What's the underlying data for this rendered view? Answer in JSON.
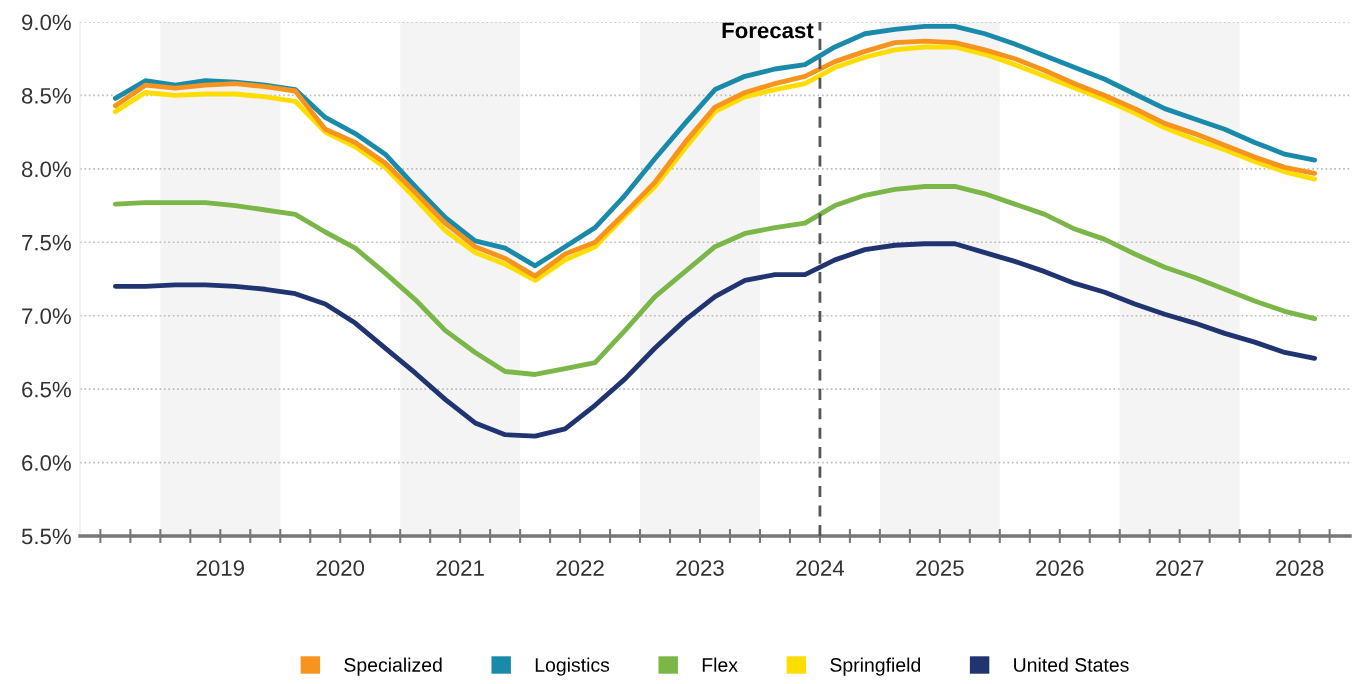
{
  "chart_data": {
    "type": "line",
    "x": [
      2018.625,
      2018.875,
      2019.125,
      2019.375,
      2019.625,
      2019.875,
      2020.125,
      2020.375,
      2020.625,
      2020.875,
      2021.125,
      2021.375,
      2021.625,
      2021.875,
      2022.125,
      2022.375,
      2022.625,
      2022.875,
      2023.125,
      2023.375,
      2023.625,
      2023.875,
      2024.125,
      2024.375,
      2024.625,
      2024.875,
      2025.125,
      2025.375,
      2025.625,
      2025.875,
      2026.125,
      2026.375,
      2026.625,
      2026.875,
      2027.125,
      2027.375,
      2027.625,
      2027.875,
      2028.125,
      2028.375,
      2028.625
    ],
    "series": [
      {
        "name": "Specialized",
        "color": "#f7941d",
        "values": [
          8.43,
          8.57,
          8.55,
          8.57,
          8.58,
          8.56,
          8.53,
          8.27,
          8.18,
          8.04,
          7.84,
          7.63,
          7.47,
          7.39,
          7.27,
          7.42,
          7.5,
          7.7,
          7.91,
          8.18,
          8.42,
          8.52,
          8.58,
          8.63,
          8.73,
          8.8,
          8.86,
          8.87,
          8.86,
          8.81,
          8.75,
          8.67,
          8.58,
          8.5,
          8.41,
          8.31,
          8.24,
          8.16,
          8.08,
          8.01,
          7.97
        ]
      },
      {
        "name": "Logistics",
        "color": "#1a8aab",
        "values": [
          8.48,
          8.6,
          8.57,
          8.6,
          8.59,
          8.57,
          8.54,
          8.35,
          8.24,
          8.1,
          7.88,
          7.67,
          7.51,
          7.46,
          7.34,
          7.47,
          7.6,
          7.82,
          8.07,
          8.31,
          8.54,
          8.63,
          8.68,
          8.71,
          8.83,
          8.92,
          8.95,
          8.97,
          8.97,
          8.92,
          8.85,
          8.77,
          8.69,
          8.61,
          8.51,
          8.41,
          8.34,
          8.27,
          8.18,
          8.1,
          8.06
        ]
      },
      {
        "name": "Flex",
        "color": "#7ab648",
        "values": [
          7.76,
          7.77,
          7.77,
          7.77,
          7.75,
          7.72,
          7.69,
          7.57,
          7.46,
          7.29,
          7.11,
          6.9,
          6.75,
          6.62,
          6.6,
          6.64,
          6.68,
          6.9,
          7.13,
          7.3,
          7.47,
          7.56,
          7.6,
          7.63,
          7.75,
          7.82,
          7.86,
          7.88,
          7.88,
          7.83,
          7.76,
          7.69,
          7.59,
          7.52,
          7.42,
          7.33,
          7.26,
          7.18,
          7.1,
          7.03,
          6.98
        ]
      },
      {
        "name": "Springfield",
        "color": "#ffdd00",
        "values": [
          8.39,
          8.52,
          8.5,
          8.51,
          8.51,
          8.49,
          8.46,
          8.25,
          8.15,
          8.01,
          7.8,
          7.58,
          7.43,
          7.35,
          7.24,
          7.38,
          7.47,
          7.68,
          7.88,
          8.14,
          8.39,
          8.49,
          8.54,
          8.58,
          8.69,
          8.76,
          8.81,
          8.83,
          8.83,
          8.78,
          8.71,
          8.63,
          8.55,
          8.47,
          8.38,
          8.28,
          8.2,
          8.13,
          8.05,
          7.98,
          7.93
        ]
      },
      {
        "name": "United States",
        "color": "#1f3471",
        "values": [
          7.2,
          7.2,
          7.21,
          7.21,
          7.2,
          7.18,
          7.15,
          7.08,
          6.95,
          6.78,
          6.61,
          6.43,
          6.27,
          6.19,
          6.18,
          6.23,
          6.39,
          6.57,
          6.78,
          6.97,
          7.13,
          7.24,
          7.28,
          7.28,
          7.38,
          7.45,
          7.48,
          7.49,
          7.49,
          7.43,
          7.37,
          7.3,
          7.22,
          7.16,
          7.08,
          7.01,
          6.95,
          6.88,
          6.82,
          6.75,
          6.71
        ]
      }
    ],
    "xlim": [
      2018.33,
      2028.92
    ],
    "xticks": [
      {
        "value": 2018.5,
        "label": null
      },
      {
        "value": 2018.75,
        "label": null
      },
      {
        "value": 2019.0,
        "label": null
      },
      {
        "value": 2019.25,
        "label": null
      },
      {
        "value": 2019.5,
        "label": "2019"
      },
      {
        "value": 2019.75,
        "label": null
      },
      {
        "value": 2020.0,
        "label": null
      },
      {
        "value": 2020.25,
        "label": null
      },
      {
        "value": 2020.5,
        "label": "2020"
      },
      {
        "value": 2020.75,
        "label": null
      },
      {
        "value": 2021.0,
        "label": null
      },
      {
        "value": 2021.25,
        "label": null
      },
      {
        "value": 2021.5,
        "label": "2021"
      },
      {
        "value": 2021.75,
        "label": null
      },
      {
        "value": 2022.0,
        "label": null
      },
      {
        "value": 2022.25,
        "label": null
      },
      {
        "value": 2022.5,
        "label": "2022"
      },
      {
        "value": 2022.75,
        "label": null
      },
      {
        "value": 2023.0,
        "label": null
      },
      {
        "value": 2023.25,
        "label": null
      },
      {
        "value": 2023.5,
        "label": "2023"
      },
      {
        "value": 2023.75,
        "label": null
      },
      {
        "value": 2024.0,
        "label": null
      },
      {
        "value": 2024.25,
        "label": null
      },
      {
        "value": 2024.5,
        "label": "2024"
      },
      {
        "value": 2024.75,
        "label": null
      },
      {
        "value": 2025.0,
        "label": null
      },
      {
        "value": 2025.25,
        "label": null
      },
      {
        "value": 2025.5,
        "label": "2025"
      },
      {
        "value": 2025.75,
        "label": null
      },
      {
        "value": 2026.0,
        "label": null
      },
      {
        "value": 2026.25,
        "label": null
      },
      {
        "value": 2026.5,
        "label": "2026"
      },
      {
        "value": 2026.75,
        "label": null
      },
      {
        "value": 2027.0,
        "label": null
      },
      {
        "value": 2027.25,
        "label": null
      },
      {
        "value": 2027.5,
        "label": "2027"
      },
      {
        "value": 2027.75,
        "label": null
      },
      {
        "value": 2028.0,
        "label": null
      },
      {
        "value": 2028.25,
        "label": null
      },
      {
        "value": 2028.5,
        "label": "2028"
      },
      {
        "value": 2028.75,
        "label": null
      }
    ],
    "ylim": [
      5.5,
      9.0
    ],
    "yticks": [
      {
        "value": 5.5,
        "label": "5.5%"
      },
      {
        "value": 6.0,
        "label": "6.0%"
      },
      {
        "value": 6.5,
        "label": "6.5%"
      },
      {
        "value": 7.0,
        "label": "7.0%"
      },
      {
        "value": 7.5,
        "label": "7.5%"
      },
      {
        "value": 8.0,
        "label": "8.0%"
      },
      {
        "value": 8.5,
        "label": "8.5%"
      },
      {
        "value": 9.0,
        "label": "9.0%"
      }
    ],
    "bands": [
      {
        "axis": "x",
        "from": 2019,
        "to": 2020,
        "color": "#f4f4f4"
      },
      {
        "axis": "x",
        "from": 2021,
        "to": 2022,
        "color": "#f4f4f4"
      },
      {
        "axis": "x",
        "from": 2023,
        "to": 2024,
        "color": "#f4f4f4"
      },
      {
        "axis": "x",
        "from": 2025,
        "to": 2026,
        "color": "#f4f4f4"
      },
      {
        "axis": "x",
        "from": 2027,
        "to": 2028,
        "color": "#f4f4f4"
      }
    ],
    "ref_lines": [
      {
        "axis": "x",
        "value": 2024.5,
        "label": "Forecast",
        "color": "#555555",
        "line_style": "dashed"
      }
    ],
    "grid": "y",
    "legend": "bottom",
    "marker": "none",
    "line_style": "solid"
  }
}
